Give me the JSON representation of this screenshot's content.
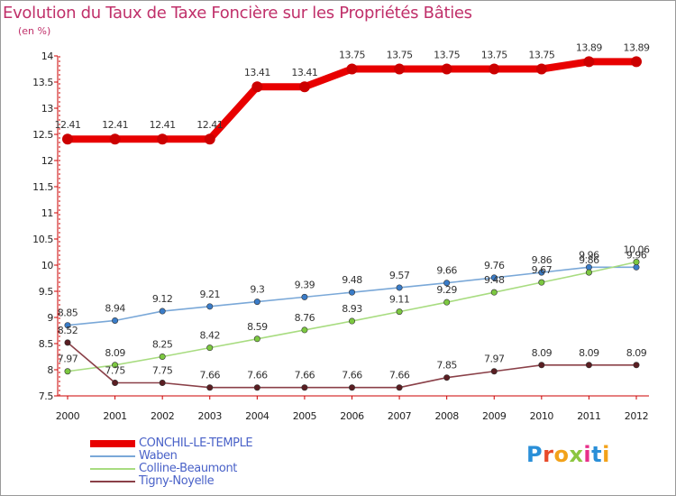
{
  "title": "Evolution du Taux de Taxe Foncière sur les Propriétés Bâties",
  "unit": "(en %)",
  "logo": {
    "text": "Proxiti",
    "letters": [
      {
        "ch": "P",
        "color": "#2a8fd8"
      },
      {
        "ch": "r",
        "color": "#e84a2a"
      },
      {
        "ch": "o",
        "color": "#f2a21a"
      },
      {
        "ch": "x",
        "color": "#8cc63f"
      },
      {
        "ch": "i",
        "color": "#e8308a"
      },
      {
        "ch": "t",
        "color": "#2a8fd8"
      },
      {
        "ch": "i",
        "color": "#f2a21a"
      }
    ]
  },
  "chart_data": {
    "type": "line",
    "title": "Evolution du Taux de Taxe Foncière sur les Propriétés Bâties",
    "ylabel": "(en %)",
    "xlabel": "",
    "x": [
      "2000",
      "2001",
      "2002",
      "2003",
      "2004",
      "2005",
      "2006",
      "2007",
      "2008",
      "2009",
      "2010",
      "2011",
      "2012"
    ],
    "ylim": [
      7.5,
      14
    ],
    "yticks": [
      7.5,
      8,
      8.5,
      9,
      9.5,
      10,
      10.5,
      11,
      11.5,
      12,
      12.5,
      13,
      13.5,
      14
    ],
    "grid": false,
    "legend_position": "bottom-left",
    "series": [
      {
        "name": "CONCHIL-LE-TEMPLE",
        "color": "#e80000",
        "marker": "#cc0000",
        "width": "thick",
        "values": [
          12.41,
          12.41,
          12.41,
          12.41,
          13.41,
          13.41,
          13.75,
          13.75,
          13.75,
          13.75,
          13.75,
          13.89,
          13.89
        ],
        "labels": [
          "12.41",
          "12.41",
          "12.41",
          "12.41",
          "13.41",
          "13.41",
          "13.75",
          "13.75",
          "13.75",
          "13.75",
          "13.75",
          "13.89",
          "13.89"
        ]
      },
      {
        "name": "Waben",
        "color": "#7aa8d8",
        "marker": "#3a7cc8",
        "width": "thin",
        "values": [
          8.85,
          8.94,
          9.12,
          9.21,
          9.3,
          9.39,
          9.48,
          9.57,
          9.66,
          9.76,
          9.86,
          9.96,
          9.96
        ],
        "labels": [
          "8.85",
          "8.94",
          "9.12",
          "9.21",
          "9.3",
          "9.39",
          "9.48",
          "9.57",
          "9.66",
          "9.76",
          "9.86",
          "9.96",
          "9.96"
        ]
      },
      {
        "name": "Colline-Beaumont",
        "color": "#a8dc80",
        "marker": "#7cc840",
        "width": "thin",
        "values": [
          7.97,
          8.09,
          8.25,
          8.42,
          8.59,
          8.76,
          8.93,
          9.11,
          9.29,
          9.48,
          9.67,
          9.86,
          10.06
        ],
        "labels": [
          "7.97",
          "8.09",
          "8.25",
          "8.42",
          "8.59",
          "8.76",
          "8.93",
          "9.11",
          "9.29",
          "9.48",
          "9.67",
          "9.86",
          "10.06"
        ]
      },
      {
        "name": "Tigny-Noyelle",
        "color": "#8a4048",
        "marker": "#5a1e22",
        "width": "thin",
        "values": [
          8.52,
          7.75,
          7.75,
          7.66,
          7.66,
          7.66,
          7.66,
          7.66,
          7.85,
          7.97,
          8.09,
          8.09,
          8.09
        ],
        "labels": [
          "8.52",
          "7.75",
          "7.75",
          "7.66",
          "7.66",
          "7.66",
          "7.66",
          "7.66",
          "7.85",
          "7.97",
          "8.09",
          "8.09",
          "8.09"
        ]
      }
    ]
  }
}
